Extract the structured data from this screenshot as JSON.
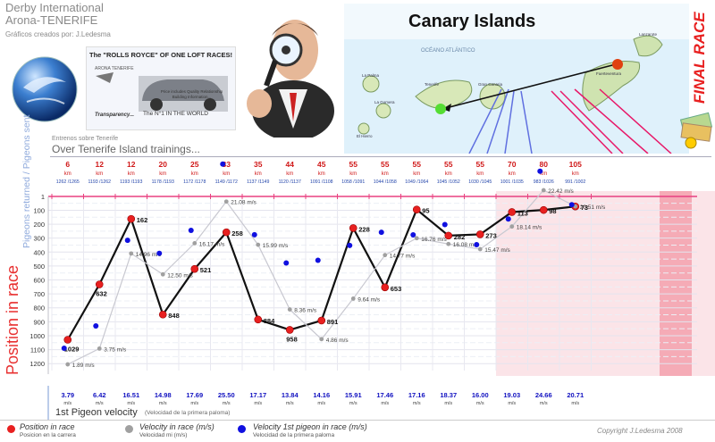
{
  "header": {
    "title_line1": "Derby International",
    "title_line2": "Arona-TENERIFE",
    "credit": "Gráficos creados por: J.Ledesma"
  },
  "ad": {
    "title": "The \"ROLLS ROYCE\" OF ONE LOFT RACES!",
    "brand": "ARONA TENERIFE",
    "note": "Price includes Quality Relationship Building Information...",
    "transparency": "Transparency...",
    "number_one": "The N°1 IN THE WORLD"
  },
  "map": {
    "title": "Canary Islands",
    "ocean": "OCÉANO ATLÁNTICO",
    "islands": [
      "Lanzarote",
      "Fuerteventura",
      "Gran Canaria",
      "Tenerife",
      "La Gomera",
      "La Palma",
      "El Hierro"
    ]
  },
  "final_race": "FINAL RACE",
  "subtitle_small": "Entrenos sobre Tenerife",
  "subtitle": "Over Tenerife Island trainings...",
  "y_label_pigeons": "Pigeons returned / Pigeons sent",
  "y_label_position": "Position in race",
  "velocity_title": "1st Pigeon velocity",
  "velocity_subtitle": "(Velocidad de la primera paloma)",
  "legend": [
    {
      "title": "Position in race",
      "subtitle": "Posicion en la carrera",
      "color": "#e82020"
    },
    {
      "title": "Velocity in race (m/s)",
      "subtitle": "Velocidad mi (m/s)",
      "color": "#a0a0a0"
    },
    {
      "title": "Velocity 1st pigeon in race (m/s)",
      "subtitle": "Velocidad de la primera paloma",
      "color": "#1010e0"
    }
  ],
  "copyright": "Copyright J.Ledesma 2008",
  "colors": {
    "position": "#e82020",
    "velocity": "#a0a0a0",
    "first_velocity": "#1010e0",
    "final_zone": "#fbe4e8",
    "axis": "#e84080"
  },
  "chart_data": {
    "type": "line",
    "races": 17,
    "distance_unit": "km",
    "distances": [
      6,
      12,
      12,
      20,
      25,
      33,
      35,
      44,
      45,
      55,
      55,
      55,
      55,
      55,
      70,
      80,
      105
    ],
    "pigeons": [
      "1262 /1265",
      "1193 /1262",
      "1193 /1193",
      "1178 /1193",
      "1172 /1178",
      "1149 /1172",
      "1137 /1149",
      "1120 /1137",
      "1091 /1108",
      "1058 /1091",
      "1044 /1058",
      "1049 /1064",
      "1045 /1052",
      "1030 /1045",
      "1001 /1035",
      "983 /1026",
      "991 /1002"
    ],
    "y_ticks": [
      1,
      100,
      200,
      300,
      400,
      500,
      600,
      700,
      800,
      900,
      1000,
      1100,
      1200
    ],
    "ylim": [
      1,
      1250
    ],
    "y_inverted": true,
    "position_labels": [
      "1029",
      "632",
      "162",
      "848",
      "521",
      "258",
      "884",
      "958",
      "891",
      "228",
      "653",
      "95",
      "282",
      "273",
      "113",
      "98",
      "73"
    ],
    "position": [
      1029,
      632,
      162,
      848,
      521,
      258,
      884,
      958,
      891,
      228,
      653,
      95,
      282,
      273,
      113,
      98,
      73
    ],
    "velocity": [
      1.89,
      3.75,
      14.96,
      12.5,
      16.17,
      21.08,
      15.99,
      8.36,
      4.86,
      9.64,
      14.77,
      16.76,
      16.08,
      15.47,
      18.14,
      22.42,
      20.51
    ],
    "velocity_labels": [
      "1.89 m/s",
      "3.75 m/s",
      "14.96 m/s",
      "12.50 m/s",
      "16.17 m/s",
      "21.08 m/s",
      "15.99 m/s",
      "8.36 m/s",
      "4.86 m/s",
      "9.64 m/s",
      "14.77 m/s",
      "16.76 m/s",
      "16.08 m/s",
      "15.47 m/s",
      "18.14 m/s",
      "22.42 m/s",
      "20.51 m/s"
    ],
    "first_velocity": [
      3.79,
      6.42,
      16.51,
      14.98,
      17.69,
      25.5,
      17.17,
      13.84,
      14.16,
      15.91,
      17.46,
      17.16,
      18.37,
      16.0,
      19.03,
      24.66,
      20.71
    ],
    "first_velocity_labels": [
      "3.79",
      "6.42",
      "16.51",
      "14.98",
      "17.69",
      "25.50",
      "17.17",
      "13.84",
      "14.16",
      "15.91",
      "17.46",
      "17.16",
      "18.37",
      "16.00",
      "19.03",
      "24.66",
      "20.71"
    ],
    "final_zone_start_index": 14
  }
}
